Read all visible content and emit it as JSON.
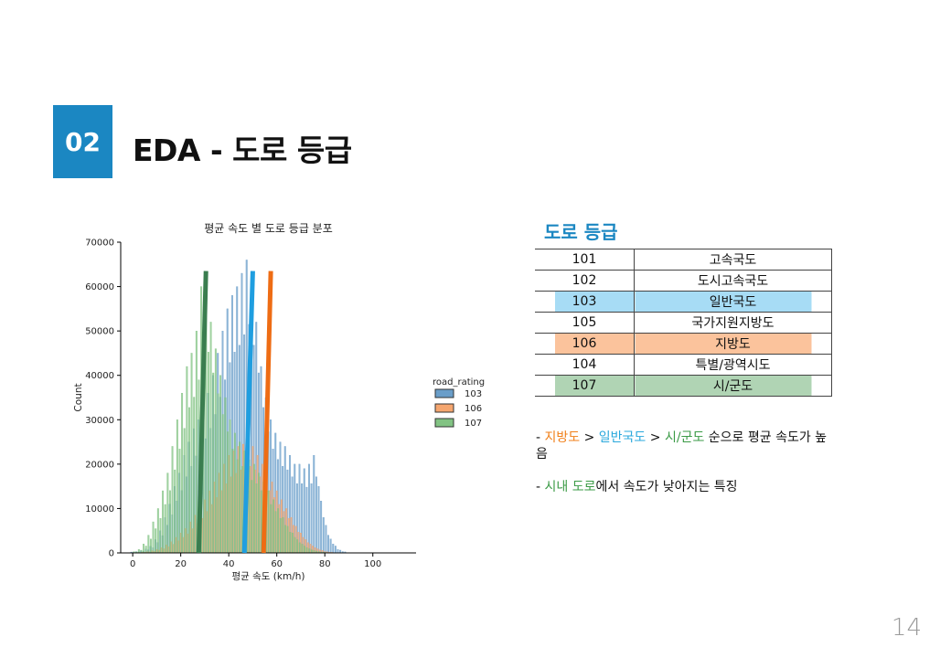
{
  "slide": {
    "number_badge": "02",
    "title": "EDA - 도로 등급",
    "page_number": "14"
  },
  "table": {
    "title": "도로 등급",
    "rows": [
      {
        "code": "101",
        "name": "고속국도",
        "highlight": ""
      },
      {
        "code": "102",
        "name": "도시고속국도",
        "highlight": ""
      },
      {
        "code": "103",
        "name": "일반국도",
        "highlight": "#a7dcf5"
      },
      {
        "code": "105",
        "name": "국가지원지방도",
        "highlight": ""
      },
      {
        "code": "106",
        "name": "지방도",
        "highlight": "#fbc39c"
      },
      {
        "code": "104",
        "name": "특별/광역시도",
        "highlight": ""
      },
      {
        "code": "107",
        "name": "시/군도",
        "highlight": "#b0d4b4"
      }
    ]
  },
  "notes": {
    "line1": {
      "prefix": "- ",
      "a": "지방도",
      "sep1": " > ",
      "b": "일반국도",
      "sep2": " > ",
      "c": "시/군도",
      "suffix": " 순으로 평균 속도가 높음"
    },
    "line2": {
      "prefix": "- ",
      "a": "시내 도로",
      "suffix": "에서 속도가 낮아지는 특징"
    }
  },
  "colors": {
    "accent": "#1b87c2",
    "orange": "#f07f18",
    "blue": "#2aa8dc",
    "green": "#3a9a45"
  },
  "chart_data": {
    "type": "bar",
    "title": "평균 속도 별 도로 등급 분포",
    "xlabel": "평균 속도 (km/h)",
    "ylabel": "Count",
    "xlim": [
      -5,
      118
    ],
    "ylim": [
      0,
      70000
    ],
    "xticks": [
      0,
      20,
      40,
      60,
      80,
      100
    ],
    "yticks": [
      0,
      10000,
      20000,
      30000,
      40000,
      50000,
      60000,
      70000
    ],
    "legend_title": "road_rating",
    "legend_position": "center-right",
    "series": [
      {
        "name": "103",
        "color": "#6a9ec9",
        "x": [
          0,
          2,
          4,
          6,
          8,
          10,
          12,
          14,
          16,
          18,
          20,
          22,
          24,
          26,
          28,
          30,
          32,
          34,
          36,
          38,
          40,
          42,
          44,
          46,
          48,
          50,
          52,
          54,
          56,
          58,
          60,
          62,
          64,
          66,
          68,
          70,
          72,
          74,
          76,
          78,
          80,
          82,
          84,
          86,
          88
        ],
        "values": [
          200,
          300,
          500,
          900,
          1500,
          3000,
          5000,
          8000,
          11000,
          15000,
          18000,
          22000,
          25000,
          28000,
          30000,
          33000,
          36000,
          40000,
          45000,
          50000,
          55000,
          58000,
          60000,
          63000,
          66000,
          60000,
          52000,
          42000,
          35000,
          30000,
          27000,
          25000,
          24000,
          22000,
          20000,
          20000,
          19000,
          20000,
          22000,
          15000,
          8000,
          4000,
          2000,
          800,
          300
        ]
      },
      {
        "name": "106",
        "color": "#f5a66f",
        "x": [
          0,
          2,
          4,
          6,
          8,
          10,
          12,
          14,
          16,
          18,
          20,
          22,
          24,
          26,
          28,
          30,
          32,
          34,
          36,
          38,
          40,
          42,
          44,
          46,
          48,
          50,
          52,
          54,
          56,
          58,
          60,
          62,
          64,
          66,
          68,
          70,
          72,
          74,
          76,
          78,
          80,
          82,
          84
        ],
        "values": [
          50,
          100,
          200,
          300,
          500,
          800,
          1200,
          1800,
          2500,
          3500,
          4500,
          5500,
          7000,
          8500,
          10000,
          12000,
          14000,
          16000,
          18000,
          20000,
          22000,
          23000,
          24000,
          24500,
          25000,
          24000,
          22000,
          20000,
          18000,
          16000,
          14000,
          12000,
          10000,
          8000,
          6000,
          4500,
          3000,
          2000,
          1200,
          700,
          300,
          150,
          50
        ]
      },
      {
        "name": "107",
        "color": "#82c383",
        "x": [
          0,
          2,
          4,
          6,
          8,
          10,
          12,
          14,
          16,
          18,
          20,
          22,
          24,
          26,
          28,
          30,
          32,
          34,
          36,
          38,
          40,
          42,
          44,
          46,
          48,
          50,
          52,
          54,
          56,
          58,
          60,
          62,
          64,
          66,
          68,
          70,
          72,
          74,
          76,
          78,
          80
        ],
        "values": [
          300,
          800,
          2000,
          4000,
          7000,
          10000,
          14000,
          18000,
          24000,
          30000,
          36000,
          42000,
          45000,
          50000,
          60000,
          58000,
          52000,
          46000,
          40000,
          35000,
          30000,
          27000,
          25000,
          23000,
          21000,
          20000,
          18000,
          16000,
          14000,
          12000,
          10000,
          8000,
          6000,
          4500,
          3000,
          2000,
          1200,
          700,
          400,
          200,
          100
        ]
      }
    ],
    "mean_lines": [
      {
        "name": "107",
        "color": "#3a7d4f",
        "x_bottom": 27.5,
        "x_top": 30.5,
        "y_top": 63500
      },
      {
        "name": "103",
        "color": "#1f9ee0",
        "x_bottom": 46.5,
        "x_top": 50.0,
        "y_top": 63500
      },
      {
        "name": "106",
        "color": "#ee6c14",
        "x_bottom": 54.5,
        "x_top": 57.5,
        "y_top": 63500
      }
    ]
  }
}
